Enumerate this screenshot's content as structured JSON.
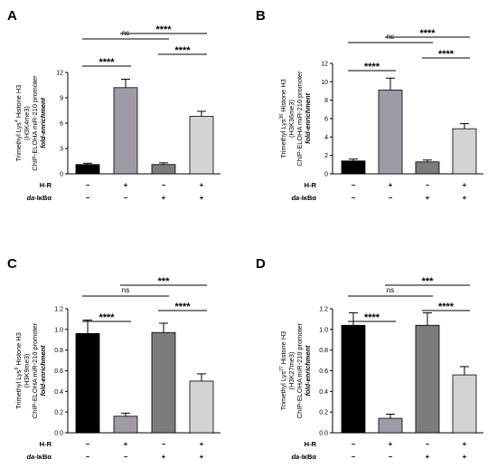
{
  "chart_data": [
    {
      "type": "bar",
      "panel": "A",
      "ylabel_lines": [
        "Trimethyl Lys",
        "4",
        " Histone H3",
        "(H3K4me3)",
        "ChIP-ELOHA  miR-210 promoter",
        "fold-enrichment"
      ],
      "ylim": [
        0,
        12
      ],
      "yticks": [
        "0",
        "3",
        "6",
        "9",
        "12"
      ],
      "ytick_values": [
        0,
        3,
        6,
        9,
        12
      ],
      "values": [
        1.1,
        10.2,
        1.1,
        6.8
      ],
      "errors": [
        0.15,
        1.0,
        0.2,
        0.6
      ],
      "colors": [
        "#000000",
        "#9e9aa6",
        "#7b7b7b",
        "#d3d3d3"
      ],
      "row_labels": [
        "H-R",
        "da-IκBα"
      ],
      "row1": [
        "−",
        "+",
        "−",
        "+"
      ],
      "row2": [
        "−",
        "−",
        "+",
        "+"
      ],
      "comparisons": [
        {
          "from": 0,
          "to": 1,
          "label": "****"
        },
        {
          "from": 2,
          "to": 3,
          "label": "****"
        },
        {
          "from": 0,
          "to": 2,
          "label": "ns"
        },
        {
          "from": 1,
          "to": 3,
          "label": "****"
        }
      ]
    },
    {
      "type": "bar",
      "panel": "B",
      "ylabel_lines": [
        "Trimethyl Lys",
        "36",
        " Histone H3",
        "(H3K36me3)",
        "ChIP-ELOHA  miR-210 promoter",
        "fold-enrichment"
      ],
      "ylim": [
        0,
        12
      ],
      "yticks": [
        "0",
        "2",
        "4",
        "6",
        "8",
        "10",
        "12"
      ],
      "ytick_values": [
        0,
        2,
        4,
        6,
        8,
        10,
        12
      ],
      "values": [
        1.4,
        9.1,
        1.3,
        4.9
      ],
      "errors": [
        0.2,
        1.3,
        0.2,
        0.55
      ],
      "colors": [
        "#000000",
        "#9e9aa6",
        "#7b7b7b",
        "#d3d3d3"
      ],
      "row_labels": [
        "H-R",
        "da-IκBα"
      ],
      "row1": [
        "−",
        "+",
        "−",
        "+"
      ],
      "row2": [
        "−",
        "−",
        "+",
        "+"
      ],
      "comparisons": [
        {
          "from": 0,
          "to": 1,
          "label": "****"
        },
        {
          "from": 2,
          "to": 3,
          "label": "****"
        },
        {
          "from": 0,
          "to": 2,
          "label": "ns"
        },
        {
          "from": 1,
          "to": 3,
          "label": "****"
        }
      ]
    },
    {
      "type": "bar",
      "panel": "C",
      "ylabel_lines": [
        "Trimethyl Lys",
        "9",
        " Histone H3",
        "(H3K9me3)",
        "ChIP-ELOHA  miR-210 promoter",
        "fold-enrichment"
      ],
      "ylim": [
        0,
        1.2
      ],
      "yticks": [
        "0.0",
        "0.2",
        "0.4",
        "0.6",
        "0.8",
        "1.0",
        "1.2"
      ],
      "ytick_values": [
        0,
        0.2,
        0.4,
        0.6,
        0.8,
        1.0,
        1.2
      ],
      "values": [
        0.96,
        0.16,
        0.97,
        0.5
      ],
      "errors": [
        0.13,
        0.03,
        0.09,
        0.07
      ],
      "colors": [
        "#000000",
        "#9e9aa6",
        "#7b7b7b",
        "#d3d3d3"
      ],
      "row_labels": [
        "H-R",
        "da-IκBα"
      ],
      "row1": [
        "−",
        "+",
        "−",
        "+"
      ],
      "row2": [
        "−",
        "−",
        "+",
        "+"
      ],
      "comparisons": [
        {
          "from": 0,
          "to": 1,
          "label": "****"
        },
        {
          "from": 2,
          "to": 3,
          "label": "****"
        },
        {
          "from": 0,
          "to": 2,
          "label": "ns"
        },
        {
          "from": 1,
          "to": 3,
          "label": "***"
        }
      ]
    },
    {
      "type": "bar",
      "panel": "D",
      "ylabel_lines": [
        "Trimethyl Lys",
        "27",
        " Histone H3",
        "(H3K27me3)",
        "ChIP-ELOHA  miR-210 promoter",
        "fold-enrichment"
      ],
      "ylim": [
        0,
        1.2
      ],
      "yticks": [
        "0.0",
        "0.2",
        "0.4",
        "0.6",
        "0.8",
        "1.0",
        "1.2"
      ],
      "ytick_values": [
        0,
        0.2,
        0.4,
        0.6,
        0.8,
        1.0,
        1.2
      ],
      "values": [
        1.04,
        0.14,
        1.04,
        0.56
      ],
      "errors": [
        0.12,
        0.04,
        0.12,
        0.08
      ],
      "colors": [
        "#000000",
        "#9e9aa6",
        "#7b7b7b",
        "#d3d3d3"
      ],
      "row_labels": [
        "H-R",
        "da-IκBα"
      ],
      "row1": [
        "−",
        "+",
        "−",
        "+"
      ],
      "row2": [
        "−",
        "−",
        "+",
        "+"
      ],
      "comparisons": [
        {
          "from": 0,
          "to": 1,
          "label": "****"
        },
        {
          "from": 2,
          "to": 3,
          "label": "****"
        },
        {
          "from": 0,
          "to": 2,
          "label": "ns"
        },
        {
          "from": 1,
          "to": 3,
          "label": "***"
        }
      ]
    }
  ]
}
